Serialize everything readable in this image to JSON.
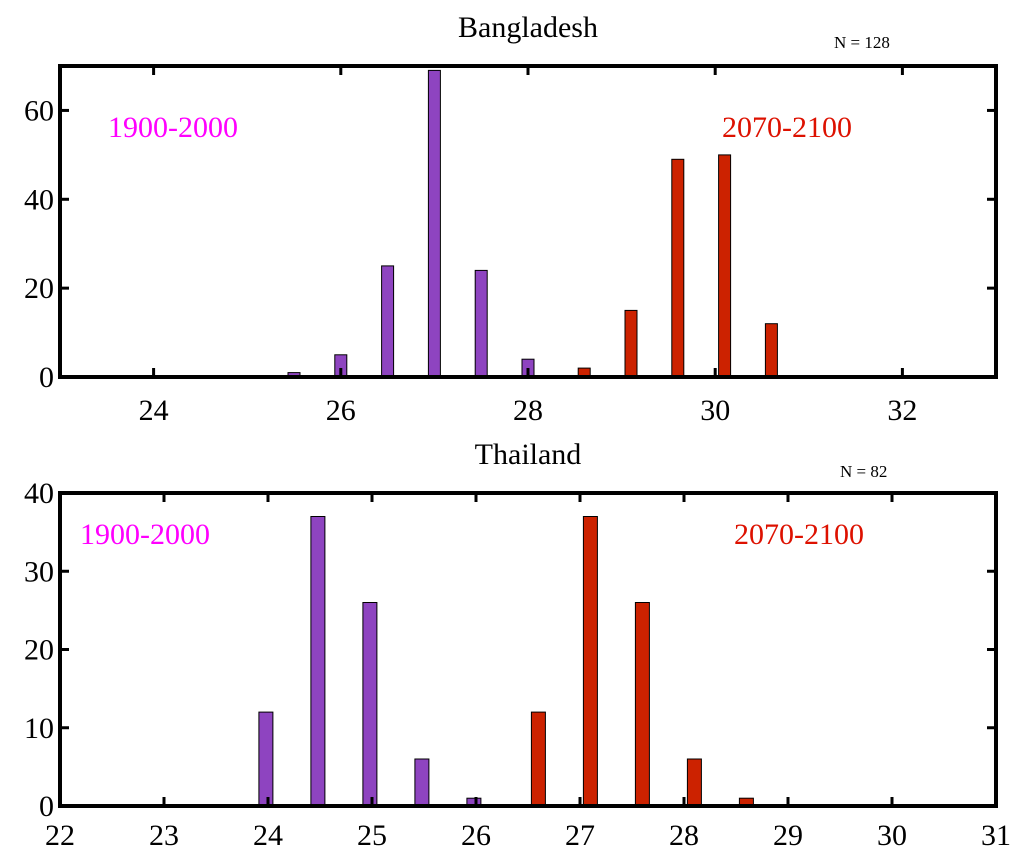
{
  "chart_data": [
    {
      "type": "bar",
      "title": "Bangladesh",
      "n_label": "N = 128",
      "xlim": [
        23,
        33
      ],
      "ylim": [
        0,
        70
      ],
      "xticks": [
        24,
        26,
        28,
        30,
        32
      ],
      "yticks": [
        0,
        20,
        40,
        60
      ],
      "grid": false,
      "series": [
        {
          "label": "1900-2000",
          "color": "#8e44c0",
          "label_color": "#ff00ff",
          "points": [
            {
              "x": 25.5,
              "y": 1
            },
            {
              "x": 26.0,
              "y": 5
            },
            {
              "x": 26.5,
              "y": 25
            },
            {
              "x": 27.0,
              "y": 69
            },
            {
              "x": 27.5,
              "y": 24
            },
            {
              "x": 28.0,
              "y": 4
            }
          ]
        },
        {
          "label": "2070-2100",
          "color": "#cc2200",
          "label_color": "#dd1100",
          "points": [
            {
              "x": 28.6,
              "y": 2
            },
            {
              "x": 29.1,
              "y": 15
            },
            {
              "x": 29.6,
              "y": 49
            },
            {
              "x": 30.1,
              "y": 50
            },
            {
              "x": 30.6,
              "y": 12
            }
          ]
        }
      ]
    },
    {
      "type": "bar",
      "title": "Thailand",
      "n_label": "N = 82",
      "xlim": [
        22,
        31
      ],
      "ylim": [
        0,
        40
      ],
      "xticks": [
        22,
        23,
        24,
        25,
        26,
        27,
        28,
        29,
        30,
        31
      ],
      "yticks": [
        0,
        10,
        20,
        30,
        40
      ],
      "grid": false,
      "series": [
        {
          "label": "1900-2000",
          "color": "#8e44c0",
          "label_color": "#ff00ff",
          "points": [
            {
              "x": 23.98,
              "y": 12
            },
            {
              "x": 24.48,
              "y": 37
            },
            {
              "x": 24.98,
              "y": 26
            },
            {
              "x": 25.48,
              "y": 6
            },
            {
              "x": 25.98,
              "y": 1
            }
          ]
        },
        {
          "label": "2070-2100",
          "color": "#cc2200",
          "label_color": "#dd1100",
          "points": [
            {
              "x": 26.6,
              "y": 12
            },
            {
              "x": 27.1,
              "y": 37
            },
            {
              "x": 27.6,
              "y": 26
            },
            {
              "x": 28.1,
              "y": 6
            },
            {
              "x": 28.6,
              "y": 1
            }
          ]
        }
      ]
    }
  ]
}
